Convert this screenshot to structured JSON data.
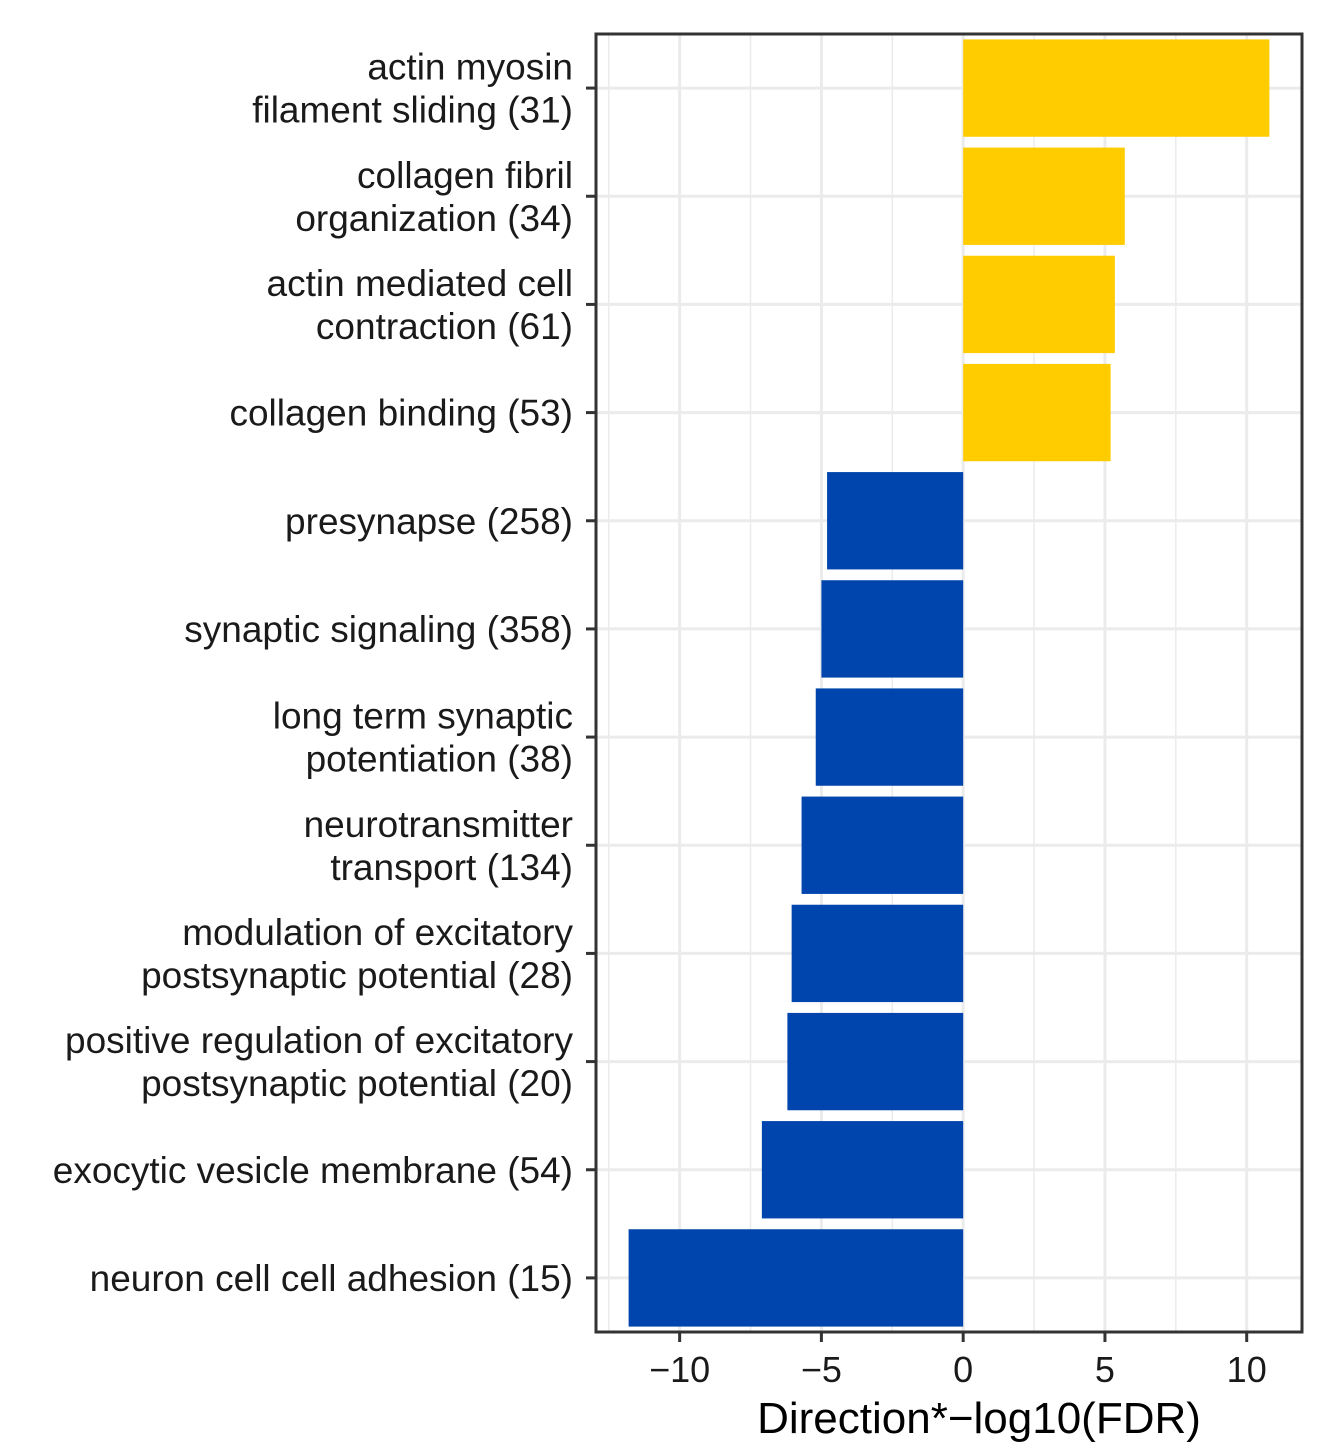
{
  "chart_data": {
    "type": "bar",
    "orientation": "horizontal",
    "categories": [
      [
        "actin myosin",
        "filament sliding (31)"
      ],
      [
        "collagen fibril",
        "organization (34)"
      ],
      [
        "actin mediated cell",
        "contraction (61)"
      ],
      [
        "collagen binding (53)"
      ],
      [
        "presynapse (258)"
      ],
      [
        "synaptic signaling (358)"
      ],
      [
        "long term synaptic",
        "potentiation (38)"
      ],
      [
        "neurotransmitter",
        "transport (134)"
      ],
      [
        "modulation of excitatory",
        "postsynaptic potential (28)"
      ],
      [
        "positive regulation of excitatory",
        "postsynaptic potential (20)"
      ],
      [
        "exocytic vesicle membrane (54)"
      ],
      [
        "neuron cell cell adhesion (15)"
      ]
    ],
    "values": [
      10.8,
      5.7,
      5.35,
      5.2,
      -4.8,
      -5.0,
      -5.2,
      -5.7,
      -6.05,
      -6.2,
      -7.1,
      -11.8
    ],
    "xlabel": "Direction*−log10(FDR)",
    "ylabel": "",
    "xlim": [
      -12.95,
      11.95
    ],
    "xticks": [
      -10,
      -5,
      0,
      5,
      10
    ],
    "xtick_labels": [
      "−10",
      "−5",
      "0",
      "5",
      "10"
    ],
    "colors": {
      "positive": "#ffcc00",
      "negative": "#0045ad",
      "grid": "#ebebeb",
      "panel_border": "#333333"
    },
    "grid": true
  }
}
